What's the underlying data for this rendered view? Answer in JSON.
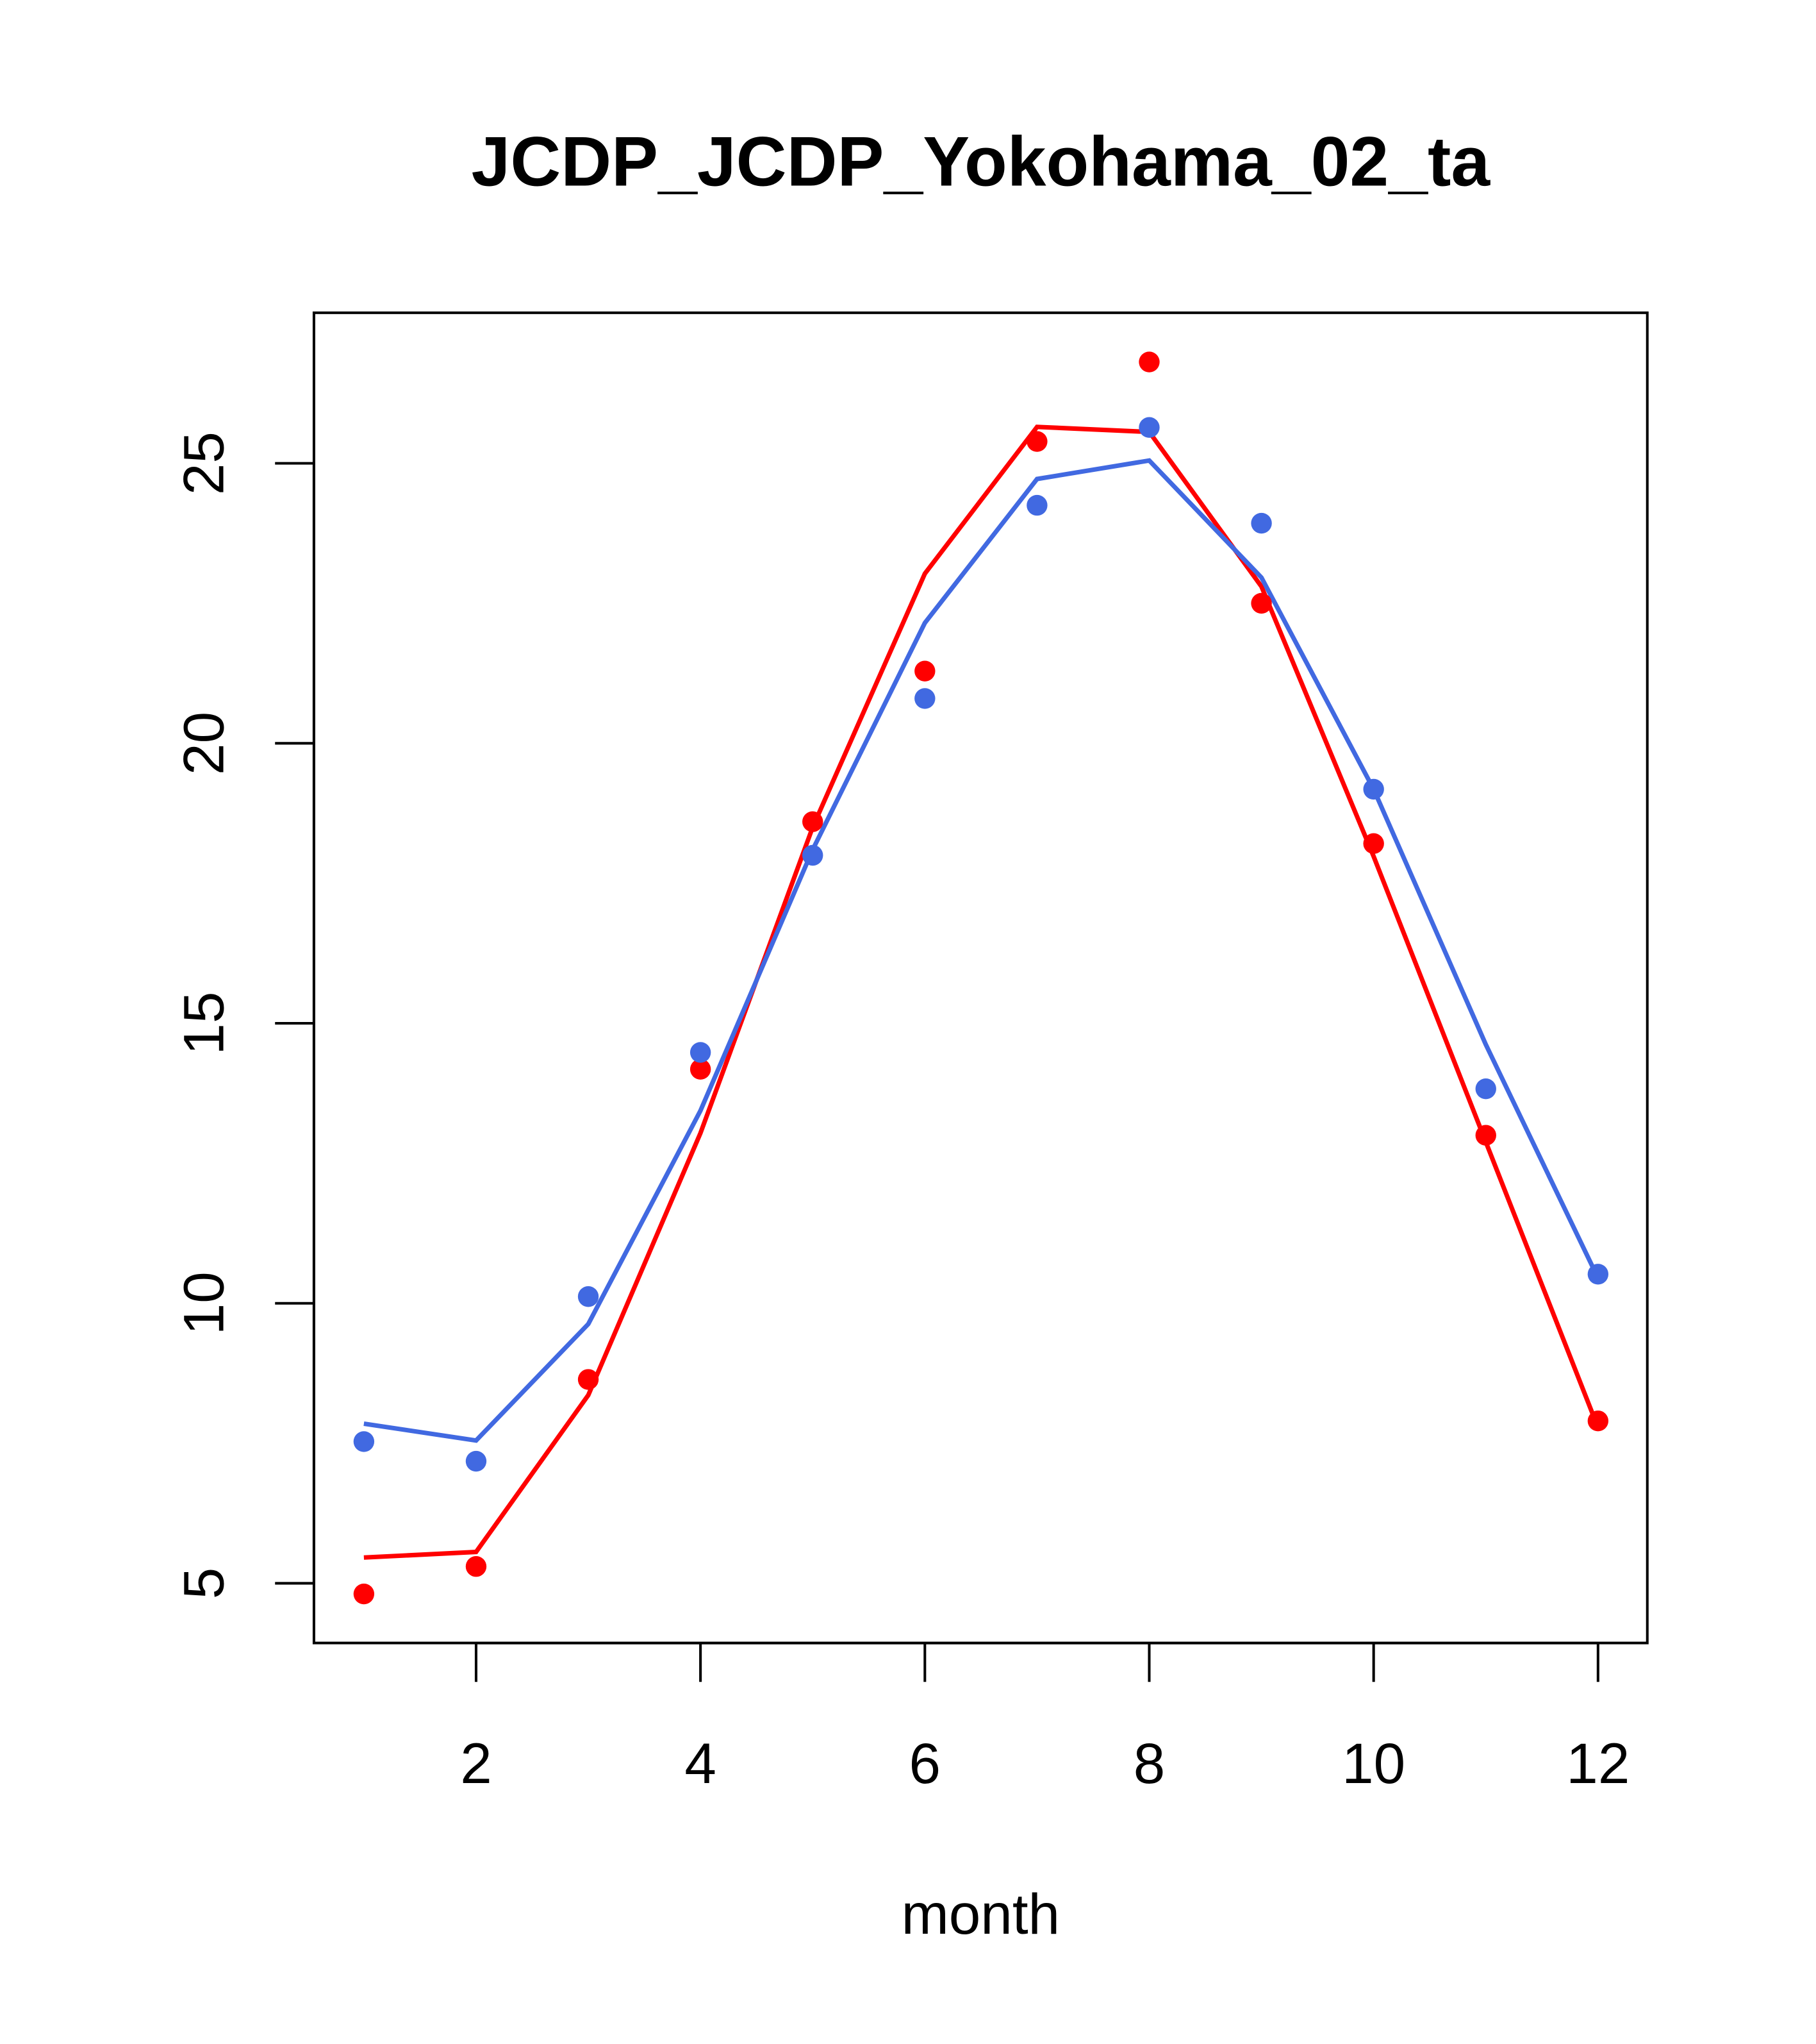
{
  "chart_data": {
    "type": "line",
    "title": "JCDP_JCDP_Yokohama_02_ta",
    "xlabel": "month",
    "ylabel": "",
    "xlim": [
      0.57,
      12.44
    ],
    "ylim": [
      3.95,
      27.7
    ],
    "x_ticks": [
      2,
      4,
      6,
      8,
      10,
      12
    ],
    "x_tick_labels": [
      "2",
      "4",
      "6",
      "8",
      "10",
      "12"
    ],
    "y_ticks": [
      5,
      10,
      15,
      20,
      25
    ],
    "y_tick_labels": [
      "5",
      "10",
      "15",
      "20",
      "25"
    ],
    "x": [
      1,
      2,
      3,
      4,
      5,
      6,
      7,
      8,
      9,
      10,
      11,
      12
    ],
    "series": [
      {
        "name": "red-points",
        "kind": "points",
        "color": "#ff0000",
        "values": [
          4.81,
          5.3,
          8.64,
          14.18,
          18.6,
          21.29,
          25.39,
          26.81,
          22.5,
          18.21,
          13.0,
          7.9
        ]
      },
      {
        "name": "blue-points",
        "kind": "points",
        "color": "#4169e1",
        "values": [
          7.53,
          7.18,
          10.12,
          14.48,
          18.0,
          20.8,
          24.25,
          25.64,
          23.93,
          19.18,
          13.83,
          10.52
        ]
      },
      {
        "name": "red-line",
        "kind": "line",
        "color": "#ff0000",
        "values": [
          5.46,
          5.56,
          8.36,
          13.04,
          18.5,
          23.03,
          25.65,
          25.56,
          22.8,
          17.98,
          12.88,
          7.78
        ]
      },
      {
        "name": "blue-line",
        "kind": "line",
        "color": "#4169e1",
        "values": [
          7.85,
          7.55,
          9.63,
          13.44,
          18.1,
          22.15,
          24.72,
          25.05,
          22.96,
          19.18,
          14.62,
          10.45
        ]
      }
    ],
    "grid": false,
    "legend": "none"
  }
}
